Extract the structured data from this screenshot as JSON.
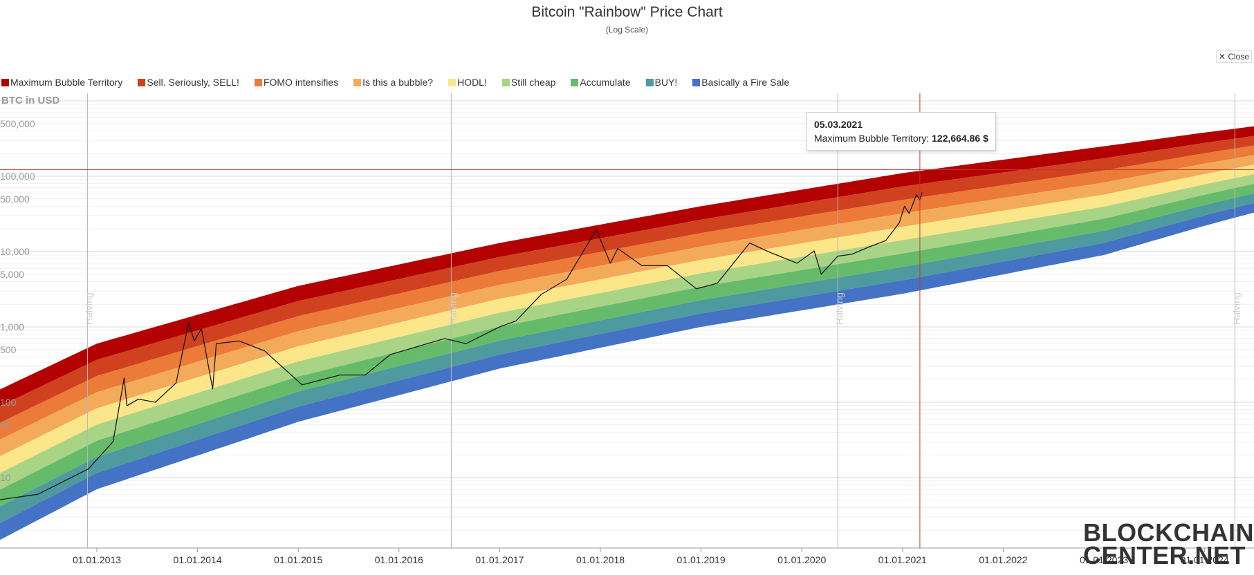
{
  "header": {
    "title": "Bitcoin \"Rainbow\" Price Chart",
    "subtitle": "(Log Scale)",
    "close_label": "Close"
  },
  "legend": [
    {
      "label": "Maximum Bubble Territory",
      "color": "#b30000"
    },
    {
      "label": "Sell. Seriously, SELL!",
      "color": "#d0411f"
    },
    {
      "label": "FOMO intensifies",
      "color": "#ec7a38"
    },
    {
      "label": "Is this a bubble?",
      "color": "#f3ab5a"
    },
    {
      "label": "HODL!",
      "color": "#fbe68a"
    },
    {
      "label": "Still cheap",
      "color": "#a9d486"
    },
    {
      "label": "Accumulate",
      "color": "#66bb6a"
    },
    {
      "label": "BUY!",
      "color": "#4e9a9e"
    },
    {
      "label": "Basically a Fire Sale",
      "color": "#4472c4"
    }
  ],
  "tooltip": {
    "date": "05.03.2021",
    "series": "Maximum Bubble Territory",
    "value": "122,664.86 $"
  },
  "logo": {
    "line1": "BLOCKCHAIN",
    "line2": "CENTER.NET"
  },
  "chart_data": {
    "type": "area",
    "title": "Bitcoin \"Rainbow\" Price Chart",
    "subtitle": "(Log Scale)",
    "ylabel": "BTC in USD",
    "y_scale": "log",
    "y_ticks": [
      {
        "value": 500000,
        "label": "500,000"
      },
      {
        "value": 100000,
        "label": "100,000"
      },
      {
        "value": 50000,
        "label": "50,000"
      },
      {
        "value": 10000,
        "label": "10,000"
      },
      {
        "value": 5000,
        "label": "5,000"
      },
      {
        "value": 1000,
        "label": "1,000"
      },
      {
        "value": 500,
        "label": "500"
      },
      {
        "value": 100,
        "label": "100"
      },
      {
        "value": 50,
        "label": "50"
      },
      {
        "value": 10,
        "label": "10"
      }
    ],
    "x_ticks": [
      "01.01.2013",
      "01.01.2014",
      "01.01.2015",
      "01.01.2016",
      "01.01.2017",
      "01.01.2018",
      "01.01.2019",
      "01.01.2020",
      "01.01.2021",
      "01.01.2022",
      "01.01.2023",
      "01.01.2024"
    ],
    "halvings": [
      {
        "date": "2012-11-28",
        "label": "Halving"
      },
      {
        "date": "2016-07-09",
        "label": "Halving"
      },
      {
        "date": "2020-05-11",
        "label": "Halving"
      },
      {
        "date": "2024-04-20",
        "label": "Halving"
      }
    ],
    "crosshair": {
      "date": "2021-03-05",
      "value": 122664.86
    },
    "rainbow_bands": {
      "top_band_upper_points": [
        {
          "x": "2012-01-01",
          "y": 140
        },
        {
          "x": "2013-01-01",
          "y": 600
        },
        {
          "x": "2015-01-01",
          "y": 3500
        },
        {
          "x": "2017-01-01",
          "y": 13000
        },
        {
          "x": "2019-01-01",
          "y": 40000
        },
        {
          "x": "2021-01-01",
          "y": 110000
        },
        {
          "x": "2023-01-01",
          "y": 250000
        },
        {
          "x": "2024-01-01",
          "y": 380000
        },
        {
          "x": "2024-12-31",
          "y": 560000
        }
      ],
      "bottom_band_lower_points": [
        {
          "x": "2012-01-01",
          "y": 1.4
        },
        {
          "x": "2013-01-01",
          "y": 7
        },
        {
          "x": "2015-01-01",
          "y": 55
        },
        {
          "x": "2017-01-01",
          "y": 280
        },
        {
          "x": "2019-01-01",
          "y": 1000
        },
        {
          "x": "2021-01-01",
          "y": 2750
        },
        {
          "x": "2023-01-01",
          "y": 9000
        },
        {
          "x": "2024-01-01",
          "y": 22000
        },
        {
          "x": "2024-12-31",
          "y": 50000
        }
      ]
    },
    "price_series": {
      "name": "BTC in USD",
      "points": [
        {
          "x": "2012-01-01",
          "y": 5
        },
        {
          "x": "2012-06-01",
          "y": 6
        },
        {
          "x": "2012-12-01",
          "y": 13
        },
        {
          "x": "2013-03-01",
          "y": 30
        },
        {
          "x": "2013-04-10",
          "y": 210
        },
        {
          "x": "2013-04-20",
          "y": 90
        },
        {
          "x": "2013-06-01",
          "y": 110
        },
        {
          "x": "2013-08-01",
          "y": 100
        },
        {
          "x": "2013-10-15",
          "y": 180
        },
        {
          "x": "2013-11-30",
          "y": 1150
        },
        {
          "x": "2013-12-20",
          "y": 650
        },
        {
          "x": "2014-01-15",
          "y": 950
        },
        {
          "x": "2014-02-25",
          "y": 150
        },
        {
          "x": "2014-03-10",
          "y": 600
        },
        {
          "x": "2014-06-01",
          "y": 650
        },
        {
          "x": "2014-09-01",
          "y": 480
        },
        {
          "x": "2015-01-15",
          "y": 170
        },
        {
          "x": "2015-06-01",
          "y": 230
        },
        {
          "x": "2015-09-01",
          "y": 230
        },
        {
          "x": "2015-12-01",
          "y": 430
        },
        {
          "x": "2016-06-15",
          "y": 700
        },
        {
          "x": "2016-09-01",
          "y": 600
        },
        {
          "x": "2017-01-01",
          "y": 1000
        },
        {
          "x": "2017-03-01",
          "y": 1200
        },
        {
          "x": "2017-06-01",
          "y": 2700
        },
        {
          "x": "2017-09-01",
          "y": 4300
        },
        {
          "x": "2017-12-17",
          "y": 19500
        },
        {
          "x": "2018-02-06",
          "y": 7000
        },
        {
          "x": "2018-03-05",
          "y": 11000
        },
        {
          "x": "2018-06-01",
          "y": 6500
        },
        {
          "x": "2018-09-01",
          "y": 6500
        },
        {
          "x": "2018-12-15",
          "y": 3200
        },
        {
          "x": "2019-03-01",
          "y": 3800
        },
        {
          "x": "2019-06-26",
          "y": 13000
        },
        {
          "x": "2019-09-01",
          "y": 10000
        },
        {
          "x": "2019-12-15",
          "y": 7000
        },
        {
          "x": "2020-02-15",
          "y": 10200
        },
        {
          "x": "2020-03-12",
          "y": 5000
        },
        {
          "x": "2020-05-11",
          "y": 8700
        },
        {
          "x": "2020-07-01",
          "y": 9200
        },
        {
          "x": "2020-09-01",
          "y": 11500
        },
        {
          "x": "2020-11-01",
          "y": 14000
        },
        {
          "x": "2020-12-20",
          "y": 24000
        },
        {
          "x": "2021-01-08",
          "y": 40000
        },
        {
          "x": "2021-01-25",
          "y": 32000
        },
        {
          "x": "2021-02-21",
          "y": 57000
        },
        {
          "x": "2021-03-05",
          "y": 48000
        },
        {
          "x": "2021-03-13",
          "y": 61000
        }
      ]
    },
    "legend_position": "top-left",
    "grid": true
  }
}
